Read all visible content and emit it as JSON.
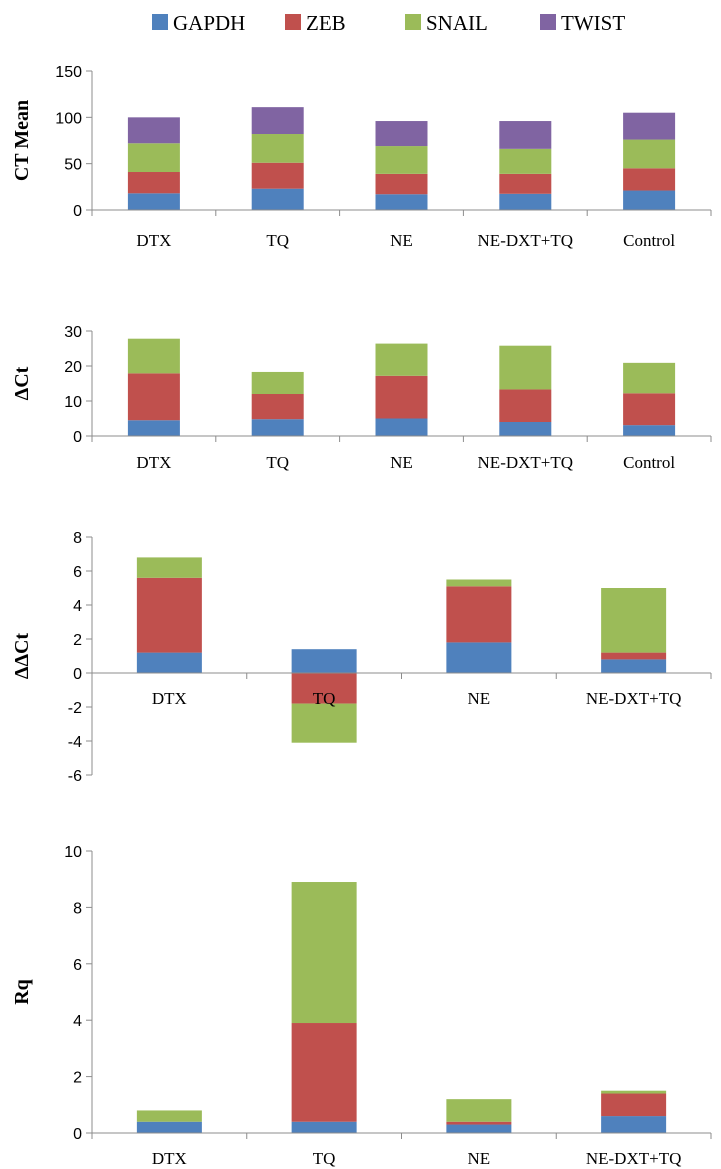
{
  "colors": {
    "GAPDH": "#4f81bd",
    "ZEB": "#c0504d",
    "SNAIL": "#9bbb59",
    "TWIST": "#8064a2"
  },
  "legend": [
    "GAPDH",
    "ZEB",
    "SNAIL",
    "TWIST"
  ],
  "chart_data": [
    {
      "type": "bar",
      "stacked": true,
      "ylabel": "CT Mean",
      "ylim": [
        0,
        150
      ],
      "yticks": [
        0,
        50,
        100,
        150
      ],
      "categories": [
        "DTX",
        "TQ",
        "NE",
        "NE-DXT+TQ",
        "Control"
      ],
      "series": [
        {
          "name": "GAPDH",
          "values": [
            18,
            23,
            17,
            17.5,
            21
          ]
        },
        {
          "name": "ZEB",
          "values": [
            23,
            28,
            22,
            21.5,
            24
          ]
        },
        {
          "name": "SNAIL",
          "values": [
            31,
            31,
            30,
            27,
            31
          ]
        },
        {
          "name": "TWIST",
          "values": [
            28,
            29,
            27,
            30,
            29
          ]
        }
      ]
    },
    {
      "type": "bar",
      "stacked": true,
      "ylabel": "ΔCt",
      "ylim": [
        0,
        30
      ],
      "yticks": [
        0,
        10,
        20,
        30
      ],
      "categories": [
        "DTX",
        "TQ",
        "NE",
        "NE-DXT+TQ",
        "Control"
      ],
      "series": [
        {
          "name": "GAPDH",
          "values": [
            4.5,
            4.8,
            5,
            4,
            3.1
          ]
        },
        {
          "name": "ZEB",
          "values": [
            13.4,
            7.2,
            12.2,
            9.3,
            9.1
          ]
        },
        {
          "name": "SNAIL",
          "values": [
            9.9,
            6.3,
            9.2,
            12.5,
            8.7
          ]
        }
      ]
    },
    {
      "type": "bar",
      "stacked": true,
      "ylabel": "ΔΔCt",
      "ylim": [
        -6,
        8
      ],
      "yticks": [
        -6,
        -4,
        -2,
        0,
        2,
        4,
        6,
        8
      ],
      "categories": [
        "DTX",
        "TQ",
        "NE",
        "NE-DXT+TQ"
      ],
      "series": [
        {
          "name": "GAPDH",
          "values": [
            1.2,
            1.4,
            1.8,
            0.8
          ]
        },
        {
          "name": "ZEB",
          "values": [
            4.4,
            -1.8,
            3.3,
            0.4
          ]
        },
        {
          "name": "SNAIL",
          "values": [
            1.2,
            -2.3,
            0.4,
            3.8
          ]
        }
      ]
    },
    {
      "type": "bar",
      "stacked": true,
      "ylabel": "Rq",
      "ylim": [
        0,
        10
      ],
      "yticks": [
        0,
        2,
        4,
        6,
        8,
        10
      ],
      "categories": [
        "DTX",
        "TQ",
        "NE",
        "NE-DXT+TQ"
      ],
      "series": [
        {
          "name": "GAPDH",
          "values": [
            0.4,
            0.4,
            0.3,
            0.6
          ]
        },
        {
          "name": "ZEB",
          "values": [
            0,
            3.5,
            0.1,
            0.8
          ]
        },
        {
          "name": "SNAIL",
          "values": [
            0.4,
            5.0,
            0.8,
            0.1
          ]
        }
      ]
    }
  ]
}
